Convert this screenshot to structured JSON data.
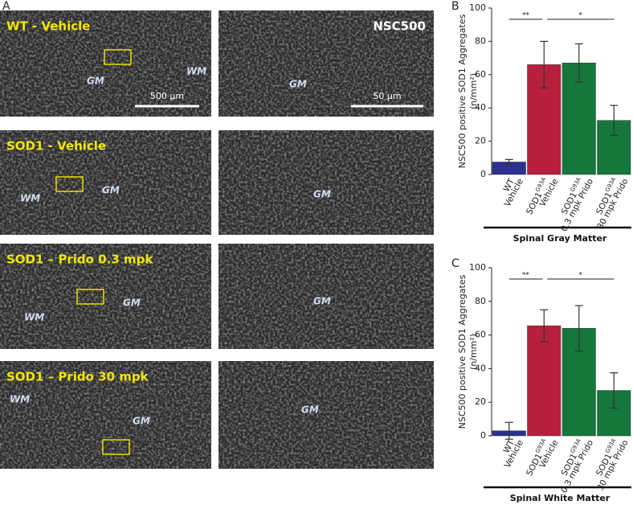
{
  "panel_labels": [
    "A",
    "B",
    "C"
  ],
  "left_images": [
    {
      "title": "WT - Vehicle",
      "labels": [
        "GM",
        "WM"
      ],
      "scale_bar": "500 µm"
    },
    {
      "title": "SOD1 - Vehicle",
      "labels": [
        "WM",
        "GM"
      ]
    },
    {
      "title": "SOD1 – Prido 0.3 mpk",
      "labels": [
        "WM",
        "GM"
      ]
    },
    {
      "title": "SOD1 – Prido 30 mpk",
      "labels": [
        "WM",
        "GM"
      ]
    }
  ],
  "right_images": [
    {
      "title": "NSC500",
      "labels": [
        "GM"
      ],
      "scale_bar": "50 µm"
    },
    {
      "labels": [
        "GM"
      ]
    },
    {
      "labels": [
        "GM"
      ]
    },
    {
      "labels": [
        "GM"
      ]
    }
  ],
  "chart_data": [
    {
      "type": "bar",
      "ylabel": [
        "NSC500 positive SOD1 Aggregates",
        "(n/mm²)"
      ],
      "xlabel": "Spinal Gray Matter",
      "categories": [
        {
          "line1": "WT",
          "line2": "Vehicle"
        },
        {
          "line1": "SOD1",
          "sup": "G93A",
          "line2": "Vehicle"
        },
        {
          "line1": "SOD1",
          "sup": "G93A",
          "line2": "0.3 mpk Prido"
        },
        {
          "line1": "SOD1",
          "sup": "G93A",
          "line2": "30 mpk Prido"
        }
      ],
      "values": [
        7.5,
        66,
        67,
        32.5
      ],
      "errors": [
        1.5,
        14,
        11.5,
        9
      ],
      "colors": [
        "#2b3190",
        "#b7203c",
        "#15773c",
        "#15773c"
      ],
      "ylim": [
        0,
        100
      ],
      "yticks": [
        0,
        20,
        40,
        60,
        80,
        100
      ],
      "annotations": [
        {
          "text": "**",
          "between": [
            0,
            1
          ]
        },
        {
          "text": "*",
          "between": [
            1,
            3
          ]
        }
      ]
    },
    {
      "type": "bar",
      "ylabel": [
        "NSC500 positive SOD1 Aggregates",
        "(n/mm²)"
      ],
      "xlabel": "Spinal White Matter",
      "categories": [
        {
          "line1": "WT",
          "line2": "Vehicle"
        },
        {
          "line1": "SOD1",
          "sup": "G93A",
          "line2": "Vehicle"
        },
        {
          "line1": "SOD1",
          "sup": "G93A",
          "line2": "0.3 mpk Prido"
        },
        {
          "line1": "SOD1",
          "sup": "G93A",
          "line2": "30 mpk Prido"
        }
      ],
      "values": [
        3,
        65.5,
        64,
        27
      ],
      "errors": [
        5,
        9.5,
        13.5,
        10.5
      ],
      "colors": [
        "#2b3190",
        "#b7203c",
        "#15773c",
        "#15773c"
      ],
      "ylim": [
        0,
        100
      ],
      "yticks": [
        0,
        20,
        40,
        60,
        80,
        100
      ],
      "annotations": [
        {
          "text": "**",
          "between": [
            0,
            1
          ]
        },
        {
          "text": "*",
          "between": [
            1,
            3
          ]
        }
      ]
    }
  ]
}
